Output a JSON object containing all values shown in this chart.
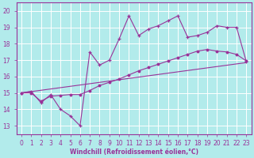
{
  "xlabel": "Windchill (Refroidissement éolien,°C)",
  "bg_color": "#b2ebeb",
  "line_color": "#993399",
  "grid_color": "#c8e8e8",
  "xticks": [
    0,
    1,
    2,
    3,
    4,
    5,
    6,
    7,
    8,
    9,
    10,
    11,
    12,
    13,
    14,
    15,
    16,
    17,
    18,
    19,
    20,
    21,
    22,
    23
  ],
  "yticks": [
    13,
    14,
    15,
    16,
    17,
    18,
    19,
    20
  ],
  "ylim": [
    12.5,
    20.5
  ],
  "xlim": [
    -0.5,
    23.5
  ],
  "line1_x": [
    0,
    1,
    2,
    3,
    4,
    5,
    6,
    7,
    8,
    9,
    10,
    11,
    12,
    13,
    14,
    15,
    16,
    17,
    18,
    19,
    20,
    21,
    22,
    23
  ],
  "line1_y": [
    15.0,
    15.1,
    14.4,
    14.9,
    14.0,
    13.6,
    13.0,
    17.5,
    16.7,
    17.0,
    18.3,
    19.7,
    18.5,
    18.9,
    19.1,
    19.4,
    19.7,
    18.4,
    18.5,
    18.7,
    19.1,
    19.0,
    19.0,
    16.9
  ],
  "line2_x": [
    0,
    1,
    2,
    3,
    4,
    5,
    6,
    7,
    8,
    9,
    10,
    11,
    12,
    13,
    14,
    15,
    16,
    17,
    18,
    19,
    20,
    21,
    22,
    23
  ],
  "line2_y": [
    15.0,
    15.0,
    14.5,
    14.8,
    14.85,
    14.9,
    14.9,
    15.15,
    15.45,
    15.65,
    15.85,
    16.1,
    16.35,
    16.55,
    16.75,
    16.95,
    17.15,
    17.35,
    17.55,
    17.65,
    17.55,
    17.5,
    17.35,
    16.95
  ],
  "line3_x": [
    0,
    23
  ],
  "line3_y": [
    15.0,
    16.85
  ],
  "tick_fontsize": 5.5,
  "xlabel_fontsize": 5.5
}
